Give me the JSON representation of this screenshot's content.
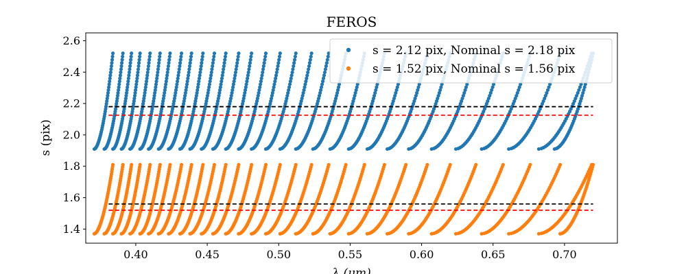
{
  "chart_data": {
    "type": "scatter",
    "title": "FEROS",
    "xlabel": "λ (μm)",
    "ylabel": "s (pix)",
    "xlim": [
      0.365,
      0.737
    ],
    "ylim": [
      1.31,
      2.65
    ],
    "x_ticks": [
      0.4,
      0.45,
      0.5,
      0.55,
      0.6,
      0.65,
      0.7
    ],
    "x_tick_labels": [
      "0.40",
      "0.45",
      "0.50",
      "0.55",
      "0.60",
      "0.65",
      "0.70"
    ],
    "y_ticks": [
      1.4,
      1.6,
      1.8,
      2.0,
      2.2,
      2.4,
      2.6
    ],
    "y_tick_labels": [
      "1.4",
      "1.6",
      "1.8",
      "2.0",
      "2.2",
      "2.4",
      "2.6"
    ],
    "grid": false,
    "legend_position": "upper-right",
    "series": [
      {
        "name": "s = 2.12 pix, Nominal s = 2.18 pix",
        "color": "#1f77b4",
        "s_min": 1.91,
        "s_max": 2.52,
        "orders": [
          [
            0.371,
            0.384
          ],
          [
            0.378,
            0.391
          ],
          [
            0.384,
            0.397
          ],
          [
            0.39,
            0.403
          ],
          [
            0.396,
            0.41
          ],
          [
            0.403,
            0.417
          ],
          [
            0.409,
            0.424
          ],
          [
            0.416,
            0.432
          ],
          [
            0.423,
            0.439
          ],
          [
            0.431,
            0.447
          ],
          [
            0.438,
            0.455
          ],
          [
            0.446,
            0.463
          ],
          [
            0.454,
            0.472
          ],
          [
            0.463,
            0.481
          ],
          [
            0.472,
            0.491
          ],
          [
            0.481,
            0.501
          ],
          [
            0.491,
            0.512
          ],
          [
            0.501,
            0.523
          ],
          [
            0.512,
            0.535
          ],
          [
            0.524,
            0.547
          ],
          [
            0.536,
            0.56
          ],
          [
            0.549,
            0.574
          ],
          [
            0.562,
            0.589
          ],
          [
            0.576,
            0.604
          ],
          [
            0.591,
            0.62
          ],
          [
            0.607,
            0.638
          ],
          [
            0.624,
            0.657
          ],
          [
            0.642,
            0.676
          ],
          [
            0.661,
            0.697
          ],
          [
            0.682,
            0.719
          ],
          [
            0.693,
            0.72
          ]
        ]
      },
      {
        "name": "s = 1.52 pix, Nominal s = 1.56 pix",
        "color": "#ff7f0e",
        "s_min": 1.37,
        "s_max": 1.81,
        "orders": [
          [
            0.371,
            0.384
          ],
          [
            0.378,
            0.391
          ],
          [
            0.384,
            0.397
          ],
          [
            0.39,
            0.403
          ],
          [
            0.396,
            0.41
          ],
          [
            0.403,
            0.417
          ],
          [
            0.409,
            0.424
          ],
          [
            0.416,
            0.432
          ],
          [
            0.423,
            0.439
          ],
          [
            0.431,
            0.447
          ],
          [
            0.438,
            0.455
          ],
          [
            0.446,
            0.463
          ],
          [
            0.454,
            0.472
          ],
          [
            0.463,
            0.481
          ],
          [
            0.472,
            0.491
          ],
          [
            0.481,
            0.501
          ],
          [
            0.491,
            0.512
          ],
          [
            0.501,
            0.523
          ],
          [
            0.512,
            0.535
          ],
          [
            0.524,
            0.547
          ],
          [
            0.536,
            0.56
          ],
          [
            0.549,
            0.574
          ],
          [
            0.562,
            0.589
          ],
          [
            0.576,
            0.604
          ],
          [
            0.591,
            0.62
          ],
          [
            0.607,
            0.638
          ],
          [
            0.624,
            0.657
          ],
          [
            0.642,
            0.676
          ],
          [
            0.661,
            0.697
          ],
          [
            0.682,
            0.719
          ],
          [
            0.697,
            0.72
          ]
        ]
      }
    ],
    "reference_lines": [
      {
        "kind": "nominal",
        "value": 2.18,
        "color": "#000000",
        "style": "dashed",
        "x_range": [
          0.381,
          0.72
        ]
      },
      {
        "kind": "measured",
        "value": 2.125,
        "color": "#ff0000",
        "style": "dashed",
        "x_range": [
          0.381,
          0.72
        ]
      },
      {
        "kind": "nominal",
        "value": 1.56,
        "color": "#000000",
        "style": "dashed",
        "x_range": [
          0.381,
          0.72
        ]
      },
      {
        "kind": "measured",
        "value": 1.52,
        "color": "#ff0000",
        "style": "dashed",
        "x_range": [
          0.381,
          0.72
        ]
      }
    ]
  }
}
